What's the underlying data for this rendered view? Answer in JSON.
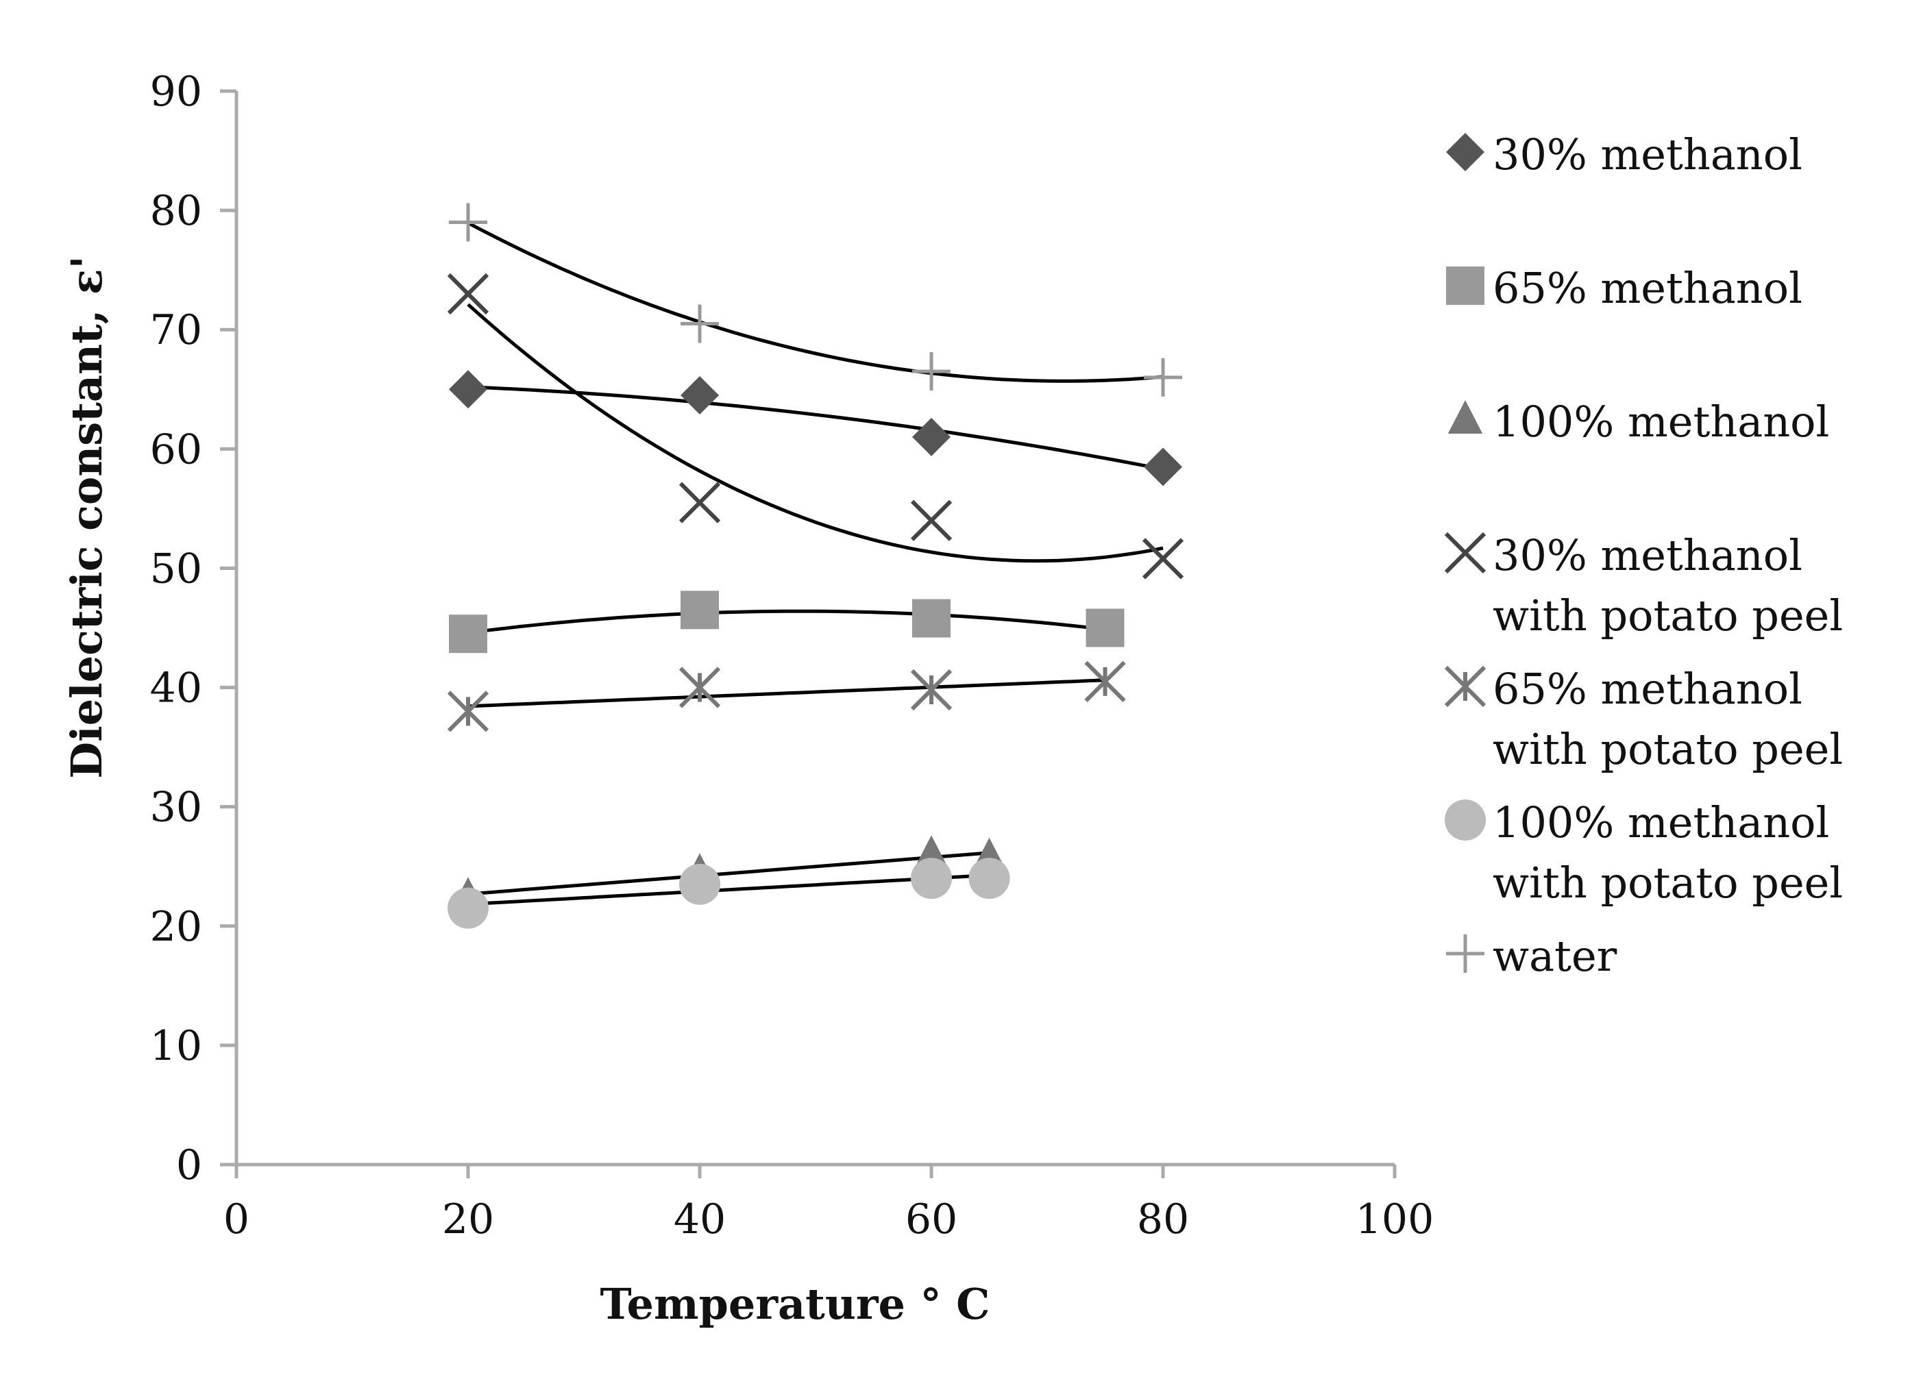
{
  "chart_data": {
    "type": "scatter",
    "title": "",
    "xlabel": "Temperature ° C",
    "ylabel": "Dielectric constant, ε'",
    "xlim": [
      0,
      100
    ],
    "ylim": [
      0,
      90
    ],
    "xticks": [
      0,
      20,
      40,
      60,
      80,
      100
    ],
    "yticks": [
      0,
      10,
      20,
      30,
      40,
      50,
      60,
      70,
      80,
      90
    ],
    "grid": false,
    "legend_position": "right",
    "series": [
      {
        "name": "30% methanol",
        "marker": "diamond",
        "color": "#555555",
        "x": [
          20,
          40,
          60,
          80
        ],
        "y": [
          65,
          64.5,
          61,
          58.5
        ],
        "trend": "poly2"
      },
      {
        "name": "65% methanol",
        "marker": "square",
        "color": "#999999",
        "x": [
          20,
          40,
          60,
          75
        ],
        "y": [
          44.5,
          46.5,
          45.8,
          45
        ],
        "trend": "poly2"
      },
      {
        "name": "100% methanol",
        "marker": "triangle",
        "color": "#777777",
        "x": [
          20,
          40,
          60,
          65
        ],
        "y": [
          22.5,
          24.5,
          26,
          25.8
        ],
        "trend": "linear"
      },
      {
        "name_lines": [
          "30% methanol",
          "with potato peel"
        ],
        "marker": "x",
        "color": "#444444",
        "x": [
          20,
          40,
          60,
          80
        ],
        "y": [
          73,
          55.5,
          54,
          50.8
        ],
        "trend": "poly2"
      },
      {
        "name_lines": [
          "65% methanol",
          "with potato peel"
        ],
        "marker": "star",
        "color": "#777777",
        "x": [
          20,
          40,
          60,
          75
        ],
        "y": [
          38,
          40,
          39.8,
          40.5
        ],
        "trend": "linear"
      },
      {
        "name_lines": [
          "100% methanol",
          "with potato peel"
        ],
        "marker": "circle",
        "color": "#bbbbbb",
        "x": [
          20,
          40,
          60,
          65
        ],
        "y": [
          21.5,
          23.5,
          24,
          24
        ],
        "trend": "linear"
      },
      {
        "name": "water",
        "marker": "plus",
        "color": "#999999",
        "x": [
          20,
          40,
          60,
          80
        ],
        "y": [
          79,
          70.5,
          66.5,
          66
        ],
        "trend": "poly2"
      }
    ]
  }
}
